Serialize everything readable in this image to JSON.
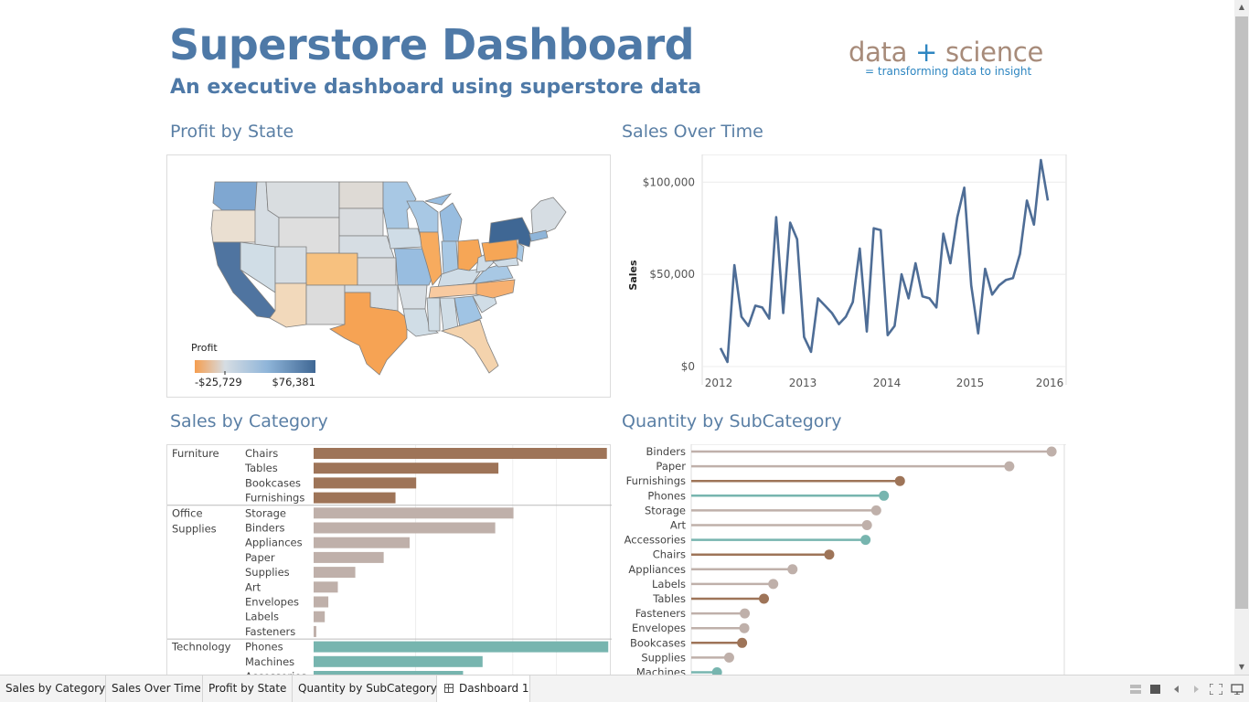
{
  "header": {
    "title": "Superstore Dashboard",
    "subtitle": "An executive dashboard using superstore data",
    "logo_main_left": "data ",
    "logo_plus": "+",
    "logo_main_right": " science",
    "logo_tagline": "= transforming data to insight"
  },
  "panels": {
    "profit_by_state": "Profit by State",
    "sales_over_time": "Sales Over Time",
    "sales_by_category": "Sales by Category",
    "quantity_by_subcategory": "Quantity by SubCategory"
  },
  "map_legend": {
    "title": "Profit",
    "min_label": "-$25,729",
    "max_label": "$76,381",
    "min_value": -25729,
    "max_value": 76381,
    "color_low": "#f59d4f",
    "color_mid": "#d6dde3",
    "color_high": "#3f6794"
  },
  "chart_data": [
    {
      "type": "line",
      "ylabel": "Sales",
      "ylim": [
        0,
        115000
      ],
      "yticks": [
        0,
        50000,
        100000
      ],
      "ytick_labels": [
        "$0",
        "$50,000",
        "$100,000"
      ],
      "xticks": [
        2012,
        2013,
        2014,
        2015,
        2016
      ],
      "xtick_labels": [
        "2012",
        "2013",
        "2014",
        "2015",
        "2016"
      ],
      "grid": true,
      "color": "#4e6d96",
      "series": [
        {
          "values": [
            10000,
            2500,
            55000,
            27000,
            22000,
            33000,
            32000,
            26000,
            81000,
            29000,
            78000,
            69000,
            16000,
            8000,
            37000,
            33000,
            29000,
            23000,
            27000,
            35000,
            64000,
            19000,
            75000,
            74000,
            17000,
            22000,
            50000,
            37000,
            56000,
            38000,
            37000,
            32000,
            72000,
            56000,
            81000,
            97000,
            44000,
            18000,
            53000,
            39000,
            44000,
            47000,
            48000,
            61000,
            90000,
            77000,
            112000,
            90000
          ]
        }
      ]
    },
    {
      "type": "bar",
      "orientation": "horizontal",
      "groups": [
        {
          "name": "Furniture",
          "color": "#9e7458",
          "categories": [
            "Chairs",
            "Tables",
            "Bookcases",
            "Furnishings"
          ],
          "values": [
            328449,
            206966,
            114880,
            91705
          ]
        },
        {
          "name": "Office Supplies",
          "color": "#bfb0aa",
          "categories": [
            "Storage",
            "Binders",
            "Appliances",
            "Paper",
            "Supplies",
            "Art",
            "Envelopes",
            "Labels",
            "Fasteners"
          ],
          "values": [
            223844,
            203413,
            107532,
            78479,
            46674,
            27119,
            16476,
            12486,
            3024
          ]
        },
        {
          "name": "Technology",
          "color": "#77b5af",
          "categories": [
            "Phones",
            "Machines",
            "Accessories"
          ],
          "values": [
            330007,
            189239,
            167380
          ]
        }
      ],
      "xlim": [
        0,
        340000
      ]
    },
    {
      "type": "lollipop",
      "orientation": "horizontal",
      "xlim": [
        0,
        6400
      ],
      "categories": [
        "Binders",
        "Paper",
        "Furnishings",
        "Phones",
        "Storage",
        "Art",
        "Accessories",
        "Chairs",
        "Appliances",
        "Labels",
        "Tables",
        "Fasteners",
        "Envelopes",
        "Bookcases",
        "Supplies",
        "Machines"
      ],
      "values": [
        6152,
        5430,
        3563,
        3289,
        3158,
        3000,
        2976,
        2356,
        1729,
        1400,
        1241,
        914,
        906,
        868,
        647,
        440
      ],
      "groups": [
        "Office Supplies",
        "Office Supplies",
        "Furniture",
        "Technology",
        "Office Supplies",
        "Office Supplies",
        "Technology",
        "Furniture",
        "Office Supplies",
        "Office Supplies",
        "Furniture",
        "Office Supplies",
        "Office Supplies",
        "Furniture",
        "Office Supplies",
        "Technology"
      ],
      "group_colors": {
        "Furniture": "#9e7458",
        "Office Supplies": "#bfb0aa",
        "Technology": "#77b5af"
      }
    }
  ],
  "tabs": [
    {
      "label": "Sales by Category",
      "active": false
    },
    {
      "label": "Sales Over Time",
      "active": false
    },
    {
      "label": "Profit by State",
      "active": false
    },
    {
      "label": "Quantity by SubCategory",
      "active": false
    },
    {
      "label": "Dashboard 1",
      "active": true
    }
  ],
  "status_icons": [
    "presentation-mode-icon",
    "sheet-icon",
    "prev-page-icon",
    "next-page-icon",
    "fit-screen-icon",
    "share-icon"
  ]
}
